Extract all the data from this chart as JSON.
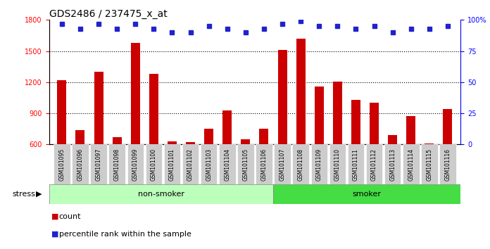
{
  "title": "GDS2486 / 237475_x_at",
  "samples": [
    "GSM101095",
    "GSM101096",
    "GSM101097",
    "GSM101098",
    "GSM101099",
    "GSM101100",
    "GSM101101",
    "GSM101102",
    "GSM101103",
    "GSM101104",
    "GSM101105",
    "GSM101106",
    "GSM101107",
    "GSM101108",
    "GSM101109",
    "GSM101110",
    "GSM101111",
    "GSM101112",
    "GSM101113",
    "GSM101114",
    "GSM101115",
    "GSM101116"
  ],
  "counts": [
    1220,
    740,
    1300,
    670,
    1580,
    1280,
    630,
    625,
    750,
    930,
    650,
    750,
    1510,
    1620,
    1155,
    1205,
    1030,
    1000,
    690,
    875,
    610,
    940
  ],
  "percentile_ranks": [
    97,
    93,
    97,
    93,
    97,
    93,
    90,
    90,
    95,
    93,
    90,
    93,
    97,
    99,
    95,
    95,
    93,
    95,
    90,
    93,
    93,
    95
  ],
  "non_smoker_count": 12,
  "smoker_count": 10,
  "ylim_left": [
    600,
    1800
  ],
  "ylim_right": [
    0,
    100
  ],
  "yticks_left": [
    600,
    900,
    1200,
    1500,
    1800
  ],
  "yticks_right": [
    0,
    25,
    50,
    75,
    100
  ],
  "bar_color": "#CC0000",
  "dot_color": "#2222CC",
  "non_smoker_color": "#BBFFBB",
  "smoker_color": "#44DD44",
  "plot_bg_color": "#FFFFFF",
  "stress_label": "stress",
  "non_smoker_label": "non-smoker",
  "smoker_label": "smoker",
  "legend_count_label": "count",
  "legend_pct_label": "percentile rank within the sample",
  "title_fontsize": 10,
  "tick_fontsize": 7,
  "label_fontsize": 8
}
